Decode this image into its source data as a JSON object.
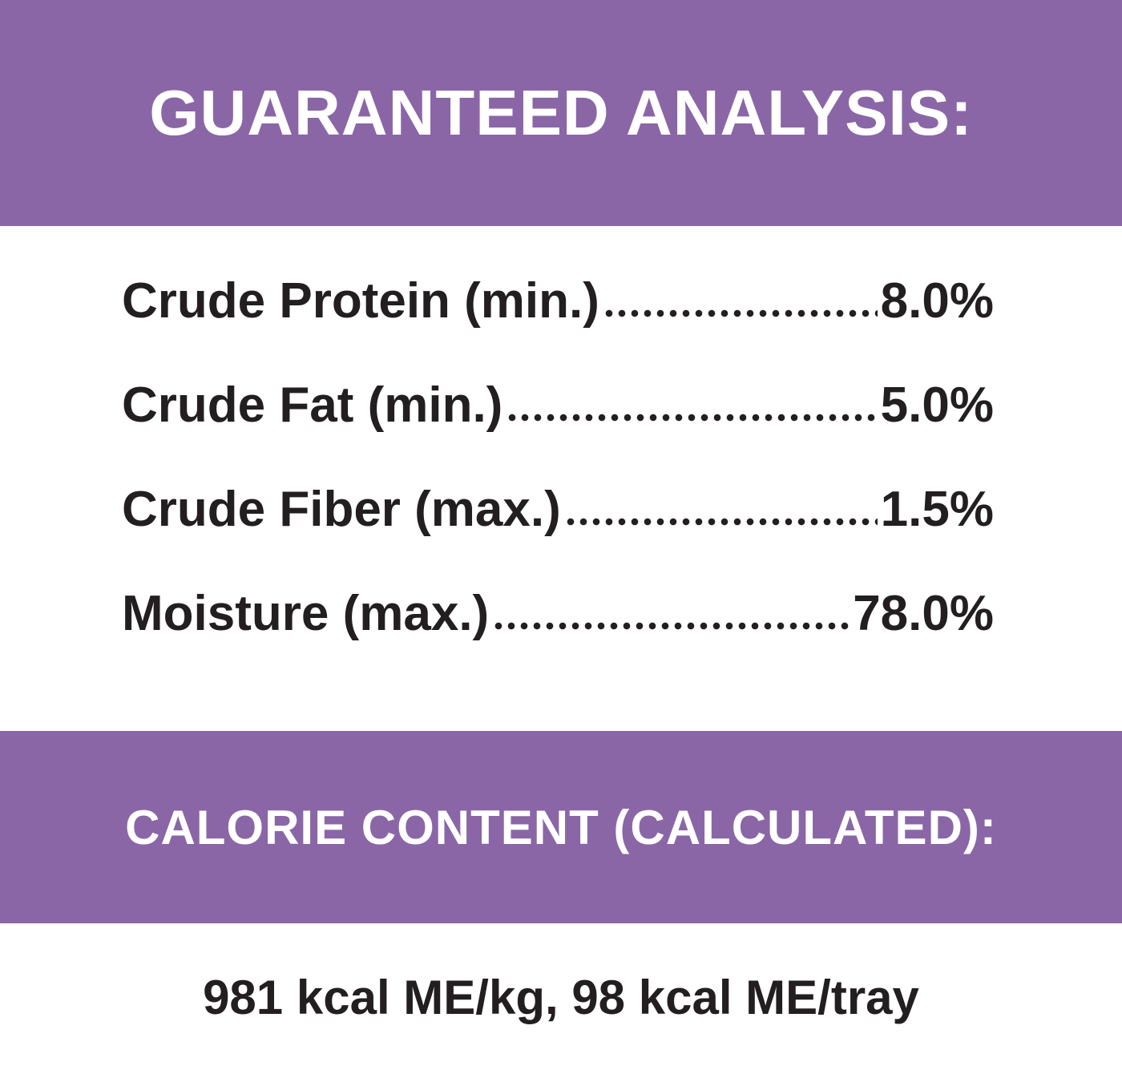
{
  "header": {
    "title": "GUARANTEED ANALYSIS:"
  },
  "analysis": {
    "rows": [
      {
        "label": "Crude Protein (min.)",
        "value": "8.0%"
      },
      {
        "label": "Crude Fat (min.)",
        "value": "5.0%"
      },
      {
        "label": "Crude Fiber (max.)",
        "value": "1.5%"
      },
      {
        "label": "Moisture (max.)",
        "value": "78.0%"
      }
    ]
  },
  "calorie": {
    "title": "CALORIE CONTENT (CALCULATED):",
    "text": "981 kcal ME/kg, 98 kcal ME/tray"
  }
}
